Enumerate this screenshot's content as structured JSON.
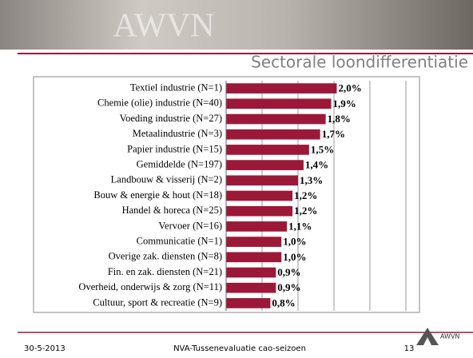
{
  "header": {
    "logo": "AWVN"
  },
  "chart_data": {
    "type": "bar",
    "orientation": "horizontal",
    "title": "Sectorale loondifferentiatie",
    "categories": [
      "Textiel industrie (N=1)",
      "Chemie (olie) industrie (N=40)",
      "Voeding industrie (N=27)",
      "Metaalindustrie (N=3)",
      "Papier  industrie (N=15)",
      "Gemiddelde (N=197)",
      "Landbouw & visserij (N=2)",
      "Bouw & energie & hout (N=18)",
      "Handel & horeca (N=25)",
      "Vervoer (N=16)",
      "Communicatie (N=1)",
      "Overige zak. diensten (N=8)",
      "Fin. en zak. diensten (N=21)",
      "Overheid, onderwijs & zorg (N=11)",
      "Cultuur, sport & recreatie (N=9)"
    ],
    "values": [
      2.0,
      1.9,
      1.8,
      1.7,
      1.5,
      1.4,
      1.3,
      1.2,
      1.2,
      1.1,
      1.0,
      1.0,
      0.9,
      0.9,
      0.8
    ],
    "value_labels": [
      "2,0%",
      "1,9%",
      "1,8%",
      "1,7%",
      "1,5%",
      "1,4%",
      "1,3%",
      "1,2%",
      "1,2%",
      "1,1%",
      "1,0%",
      "1,0%",
      "0,9%",
      "0,9%",
      "0,8%"
    ],
    "color": "#9c1838",
    "xlim": [
      0,
      3.25
    ],
    "xticks": [
      0,
      0.65,
      1.3,
      1.95,
      2.6,
      3.25
    ],
    "grid": true
  },
  "footer": {
    "date": "30-5-2013",
    "title": "NVA-Tussenevaluatie cao-seizoen",
    "page": "13",
    "logo": "AWVN"
  }
}
